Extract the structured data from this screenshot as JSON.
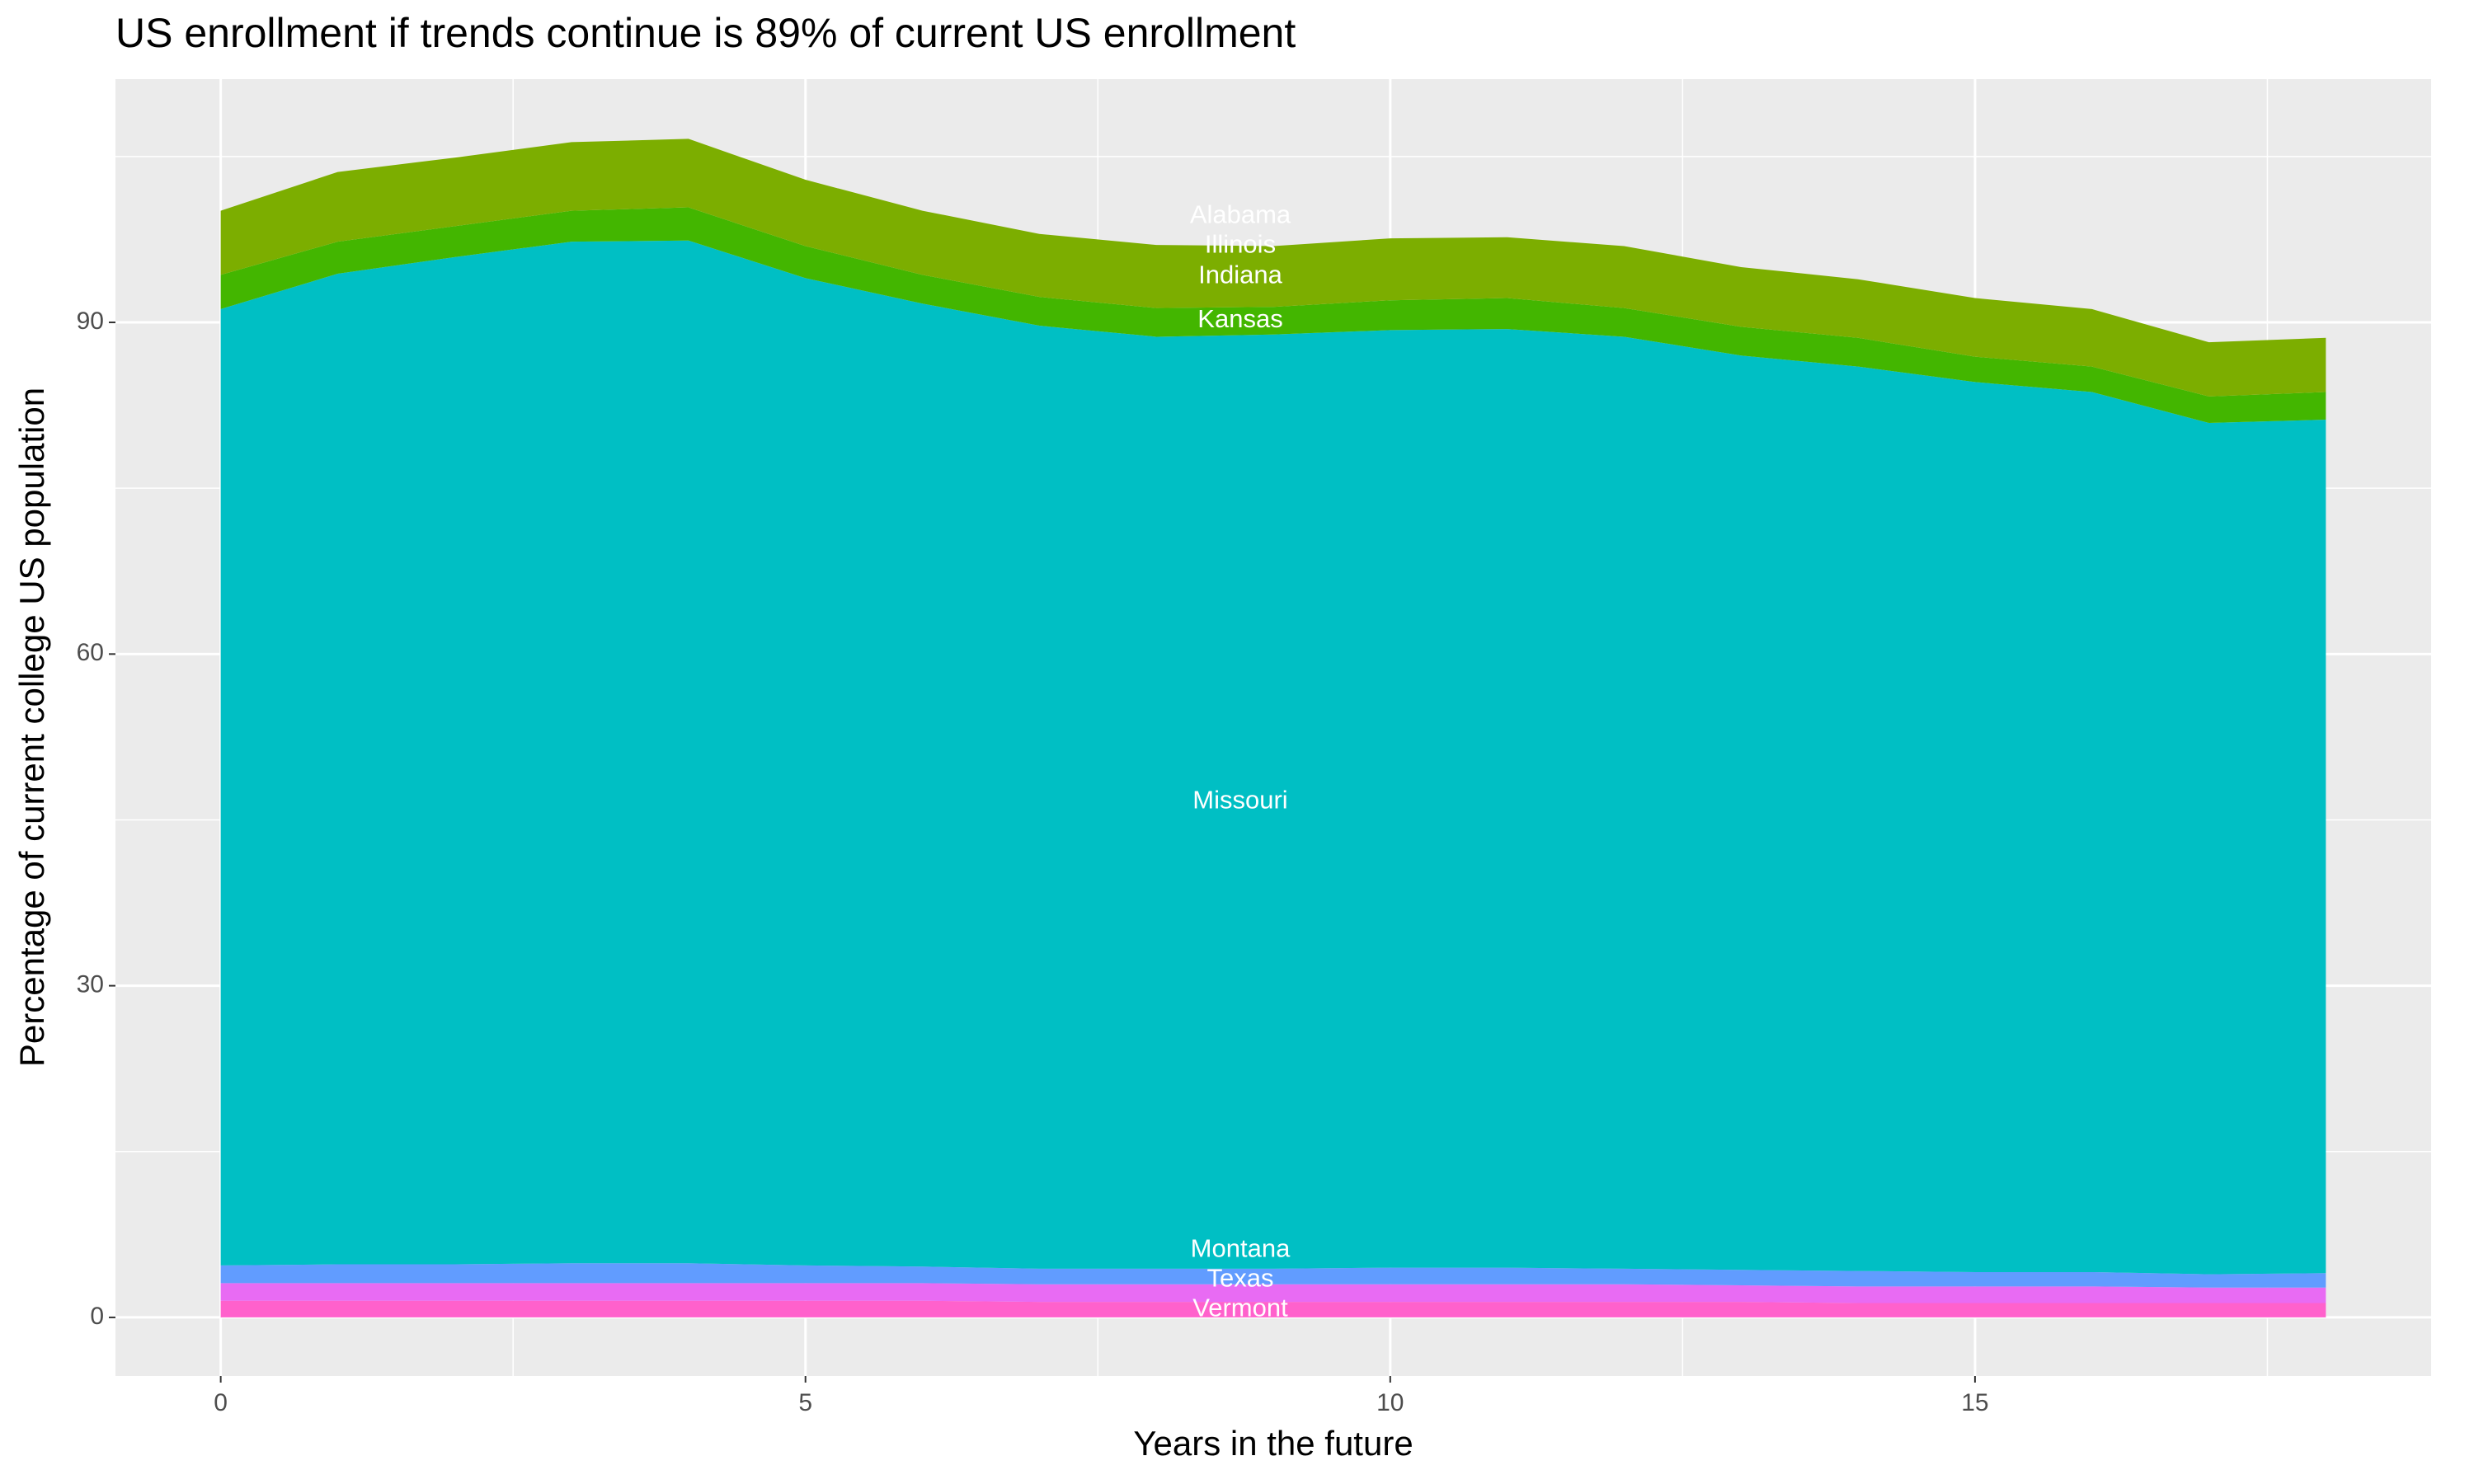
{
  "chart_data": {
    "type": "stacked_area",
    "title": "US enrollment if trends continue is 89% of current US enrollment",
    "x_label": "Years in the future",
    "y_label": "Percentage of current college US population",
    "x": [
      0,
      1,
      2,
      3,
      4,
      5,
      6,
      7,
      8,
      9,
      10,
      11,
      12,
      13,
      14,
      15,
      16,
      17,
      18
    ],
    "series": [
      {
        "name": "Alabama",
        "color": "#F8766D",
        "values": [
          0,
          0,
          0,
          0,
          0,
          0,
          0,
          0,
          0,
          0,
          0,
          0,
          0,
          0,
          0,
          0,
          0,
          0,
          0
        ]
      },
      {
        "name": "Illinois",
        "color": "#CD9600",
        "values": [
          0,
          0,
          0,
          0,
          0,
          0,
          0,
          0,
          0,
          0,
          0,
          0,
          0,
          0,
          0,
          0,
          0,
          0,
          0
        ]
      },
      {
        "name": "Indiana",
        "color": "#7CAE00",
        "values": [
          5.8,
          6.3,
          6.2,
          6.2,
          6.2,
          6.0,
          5.8,
          5.7,
          5.7,
          5.5,
          5.6,
          5.5,
          5.6,
          5.4,
          5.3,
          5.3,
          5.2,
          4.9,
          4.9
        ]
      },
      {
        "name": "Kansas",
        "color": "#43B600",
        "values": [
          3.1,
          2.9,
          2.8,
          2.8,
          3.0,
          2.9,
          2.6,
          2.6,
          2.6,
          2.5,
          2.7,
          2.8,
          2.6,
          2.6,
          2.6,
          2.3,
          2.3,
          2.4,
          2.5
        ]
      },
      {
        "name": "Missouri",
        "color": "#00BFC4",
        "values": [
          86.5,
          89.6,
          91.1,
          92.4,
          92.5,
          89.3,
          87.1,
          85.3,
          84.3,
          84.5,
          84.8,
          84.9,
          84.3,
          82.7,
          81.8,
          80.5,
          79.6,
          77.0,
          77.2
        ]
      },
      {
        "name": "Montana",
        "color": "#619CFF",
        "values": [
          1.6,
          1.7,
          1.7,
          1.8,
          1.8,
          1.6,
          1.5,
          1.4,
          1.4,
          1.4,
          1.5,
          1.5,
          1.4,
          1.4,
          1.4,
          1.3,
          1.3,
          1.2,
          1.3
        ]
      },
      {
        "name": "Texas",
        "color": "#E86BF3",
        "values": [
          1.6,
          1.6,
          1.6,
          1.6,
          1.6,
          1.6,
          1.6,
          1.6,
          1.6,
          1.6,
          1.6,
          1.6,
          1.6,
          1.5,
          1.5,
          1.5,
          1.5,
          1.4,
          1.4
        ]
      },
      {
        "name": "Vermont",
        "color": "#FF61CC",
        "values": [
          1.5,
          1.5,
          1.5,
          1.5,
          1.5,
          1.5,
          1.5,
          1.4,
          1.4,
          1.4,
          1.4,
          1.4,
          1.4,
          1.4,
          1.3,
          1.3,
          1.3,
          1.3,
          1.3
        ]
      }
    ],
    "label_x": 9,
    "xlim": [
      -0.9,
      18.9
    ],
    "xticks": [
      0,
      5,
      10,
      15
    ],
    "ylim": [
      -5.3,
      112
    ],
    "yticks": [
      0,
      30,
      60,
      90
    ],
    "grid": true
  }
}
